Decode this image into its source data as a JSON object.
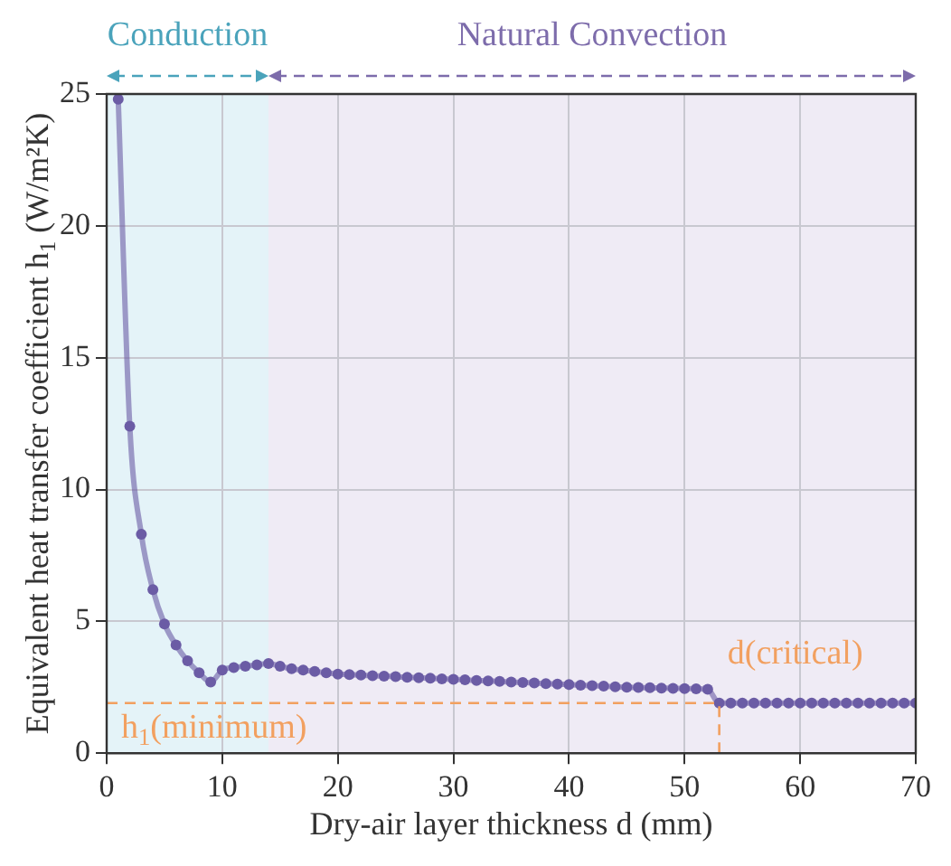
{
  "chart_data": {
    "type": "line",
    "xlabel": "Dry-air layer thickness d (mm)",
    "ylabel": "Equivalent heat transfer coefficient h$_{1}$ (W/m²K)",
    "x": [
      1,
      2,
      3,
      4,
      5,
      6,
      7,
      8,
      9,
      10,
      11,
      12,
      13,
      14,
      15,
      16,
      17,
      18,
      19,
      20,
      21,
      22,
      23,
      24,
      25,
      26,
      27,
      28,
      29,
      30,
      31,
      32,
      33,
      34,
      35,
      36,
      37,
      38,
      39,
      40,
      41,
      42,
      43,
      44,
      45,
      46,
      47,
      48,
      49,
      50,
      51,
      52,
      53,
      54,
      55,
      56,
      57,
      58,
      59,
      60,
      61,
      62,
      63,
      64,
      65,
      66,
      67,
      68,
      69,
      70
    ],
    "series": [
      {
        "color": "#6b5ca5",
        "values": [
          24.8,
          12.4,
          8.3,
          6.2,
          4.9,
          4.1,
          3.5,
          3.05,
          2.7,
          3.15,
          3.25,
          3.3,
          3.35,
          3.4,
          3.3,
          3.2,
          3.15,
          3.1,
          3.05,
          3.0,
          2.98,
          2.96,
          2.94,
          2.92,
          2.9,
          2.88,
          2.86,
          2.84,
          2.82,
          2.8,
          2.78,
          2.76,
          2.74,
          2.72,
          2.7,
          2.68,
          2.66,
          2.64,
          2.62,
          2.6,
          2.58,
          2.56,
          2.54,
          2.52,
          2.5,
          2.49,
          2.48,
          2.47,
          2.46,
          2.45,
          2.44,
          2.42,
          1.9,
          1.9,
          1.9,
          1.9,
          1.9,
          1.9,
          1.9,
          1.9,
          1.9,
          1.9,
          1.9,
          1.9,
          1.9,
          1.9,
          1.9,
          1.9,
          1.9,
          1.9
        ]
      }
    ],
    "xlim": [
      0,
      70
    ],
    "xticks": [
      0,
      10,
      20,
      30,
      40,
      50,
      60,
      70
    ],
    "ylim": [
      0,
      25
    ],
    "yticks": [
      0,
      5,
      10,
      15,
      20,
      25
    ],
    "grid": true,
    "marker": "circle",
    "line_style": "solid",
    "legend": false,
    "bands": [
      {
        "axis": "x",
        "from": 0,
        "to": 14,
        "label": "Conduction",
        "color": "#e4f3f8"
      },
      {
        "axis": "x",
        "from": 14,
        "to": 70,
        "label": "Natural Convection",
        "color": "#efebf5"
      }
    ],
    "ref_lines": [
      {
        "axis": "y",
        "value": 1.9,
        "label": "h$_{1}$(minimum)",
        "color": "#f2a060",
        "line_style": "dashed"
      },
      {
        "axis": "x",
        "value": 53,
        "label": "d(critical)",
        "color": "#f2a060",
        "line_style": "dashed"
      }
    ]
  }
}
